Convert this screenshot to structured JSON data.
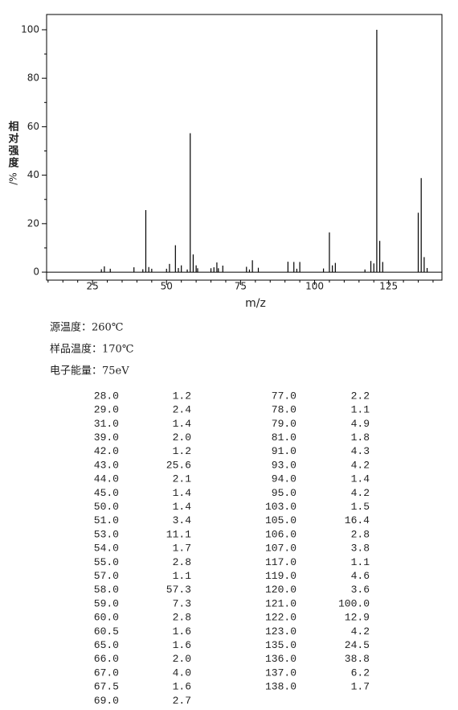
{
  "chart_data": {
    "type": "bar",
    "ylabel": "相对强度/%",
    "xlabel": "m/z",
    "color": "#000000",
    "x": [
      28,
      29,
      31,
      39,
      42,
      43,
      44,
      45,
      50,
      51,
      53,
      54,
      55,
      57,
      58,
      59,
      60,
      60.5,
      65,
      66,
      67,
      67.5,
      69,
      77,
      78,
      79,
      81,
      91,
      93,
      94,
      95,
      103,
      105,
      106,
      107,
      117,
      119,
      120,
      121,
      122,
      123,
      135,
      136,
      137,
      138
    ],
    "values": [
      1.2,
      2.4,
      1.4,
      2.0,
      1.2,
      25.6,
      2.1,
      1.4,
      1.4,
      3.4,
      11.1,
      1.7,
      2.8,
      1.1,
      57.3,
      7.3,
      2.8,
      1.6,
      1.6,
      2.0,
      4.0,
      1.6,
      2.7,
      2.2,
      1.1,
      4.9,
      1.8,
      4.3,
      4.2,
      1.4,
      4.2,
      1.5,
      16.4,
      2.8,
      3.8,
      1.1,
      4.6,
      3.6,
      100,
      12.9,
      4.2,
      24.5,
      38.8,
      6.2,
      1.7
    ],
    "xlim": [
      9.5,
      143
    ],
    "ylim": [
      -3.3,
      106.3
    ],
    "xticks": [
      25,
      50,
      75,
      100,
      125
    ],
    "yticks": [
      0,
      20,
      40,
      60,
      80,
      100
    ],
    "xticks_minor": [
      10,
      15,
      20,
      30,
      35,
      40,
      45,
      55,
      60,
      65,
      70,
      80,
      85,
      90,
      95,
      105,
      110,
      115,
      120,
      130,
      135,
      140
    ],
    "yticks_minor": [
      10,
      30,
      50,
      70,
      90
    ],
    "grid": false
  },
  "conditions": [
    "源温度：260℃",
    "样品温度：170℃",
    "电子能量：75eV"
  ],
  "table": {
    "rows": [
      [
        "28.0",
        "1.2",
        "77.0",
        "2.2"
      ],
      [
        "29.0",
        "2.4",
        "78.0",
        "1.1"
      ],
      [
        "31.0",
        "1.4",
        "79.0",
        "4.9"
      ],
      [
        "39.0",
        "2.0",
        "81.0",
        "1.8"
      ],
      [
        "42.0",
        "1.2",
        "91.0",
        "4.3"
      ],
      [
        "43.0",
        "25.6",
        "93.0",
        "4.2"
      ],
      [
        "44.0",
        "2.1",
        "94.0",
        "1.4"
      ],
      [
        "45.0",
        "1.4",
        "95.0",
        "4.2"
      ],
      [
        "50.0",
        "1.4",
        "103.0",
        "1.5"
      ],
      [
        "51.0",
        "3.4",
        "105.0",
        "16.4"
      ],
      [
        "53.0",
        "11.1",
        "106.0",
        "2.8"
      ],
      [
        "54.0",
        "1.7",
        "107.0",
        "3.8"
      ],
      [
        "55.0",
        "2.8",
        "117.0",
        "1.1"
      ],
      [
        "57.0",
        "1.1",
        "119.0",
        "4.6"
      ],
      [
        "58.0",
        "57.3",
        "120.0",
        "3.6"
      ],
      [
        "59.0",
        "7.3",
        "121.0",
        "100.0"
      ],
      [
        "60.0",
        "2.8",
        "122.0",
        "12.9"
      ],
      [
        "60.5",
        "1.6",
        "123.0",
        "4.2"
      ],
      [
        "65.0",
        "1.6",
        "135.0",
        "24.5"
      ],
      [
        "66.0",
        "2.0",
        "136.0",
        "38.8"
      ],
      [
        "67.0",
        "4.0",
        "137.0",
        "6.2"
      ],
      [
        "67.5",
        "1.6",
        "138.0",
        "1.7"
      ],
      [
        "69.0",
        "2.7"
      ]
    ]
  }
}
